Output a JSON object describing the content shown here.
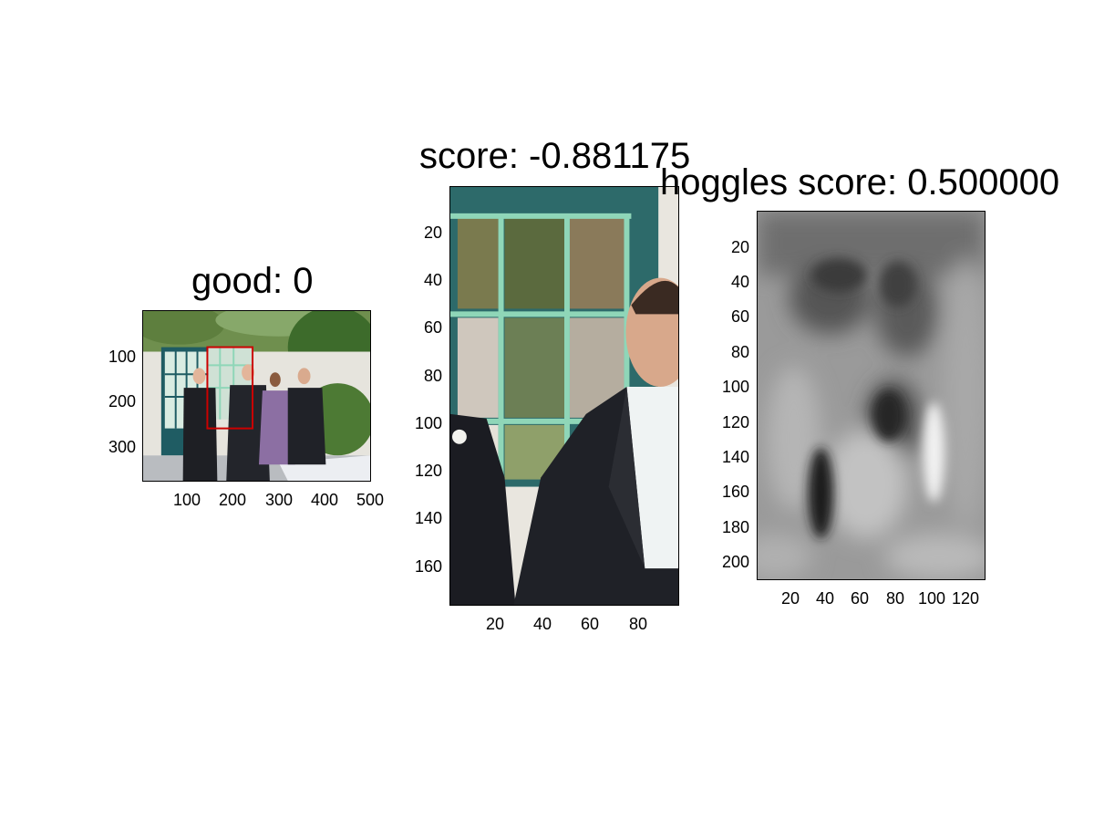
{
  "panels": [
    {
      "title": "good: 0",
      "x_ticks": [
        "100",
        "200",
        "300",
        "400",
        "500"
      ],
      "y_ticks": [
        "100",
        "200",
        "300"
      ]
    },
    {
      "title": "score: -0.881175",
      "x_ticks": [
        "20",
        "40",
        "60",
        "80"
      ],
      "y_ticks": [
        "20",
        "40",
        "60",
        "80",
        "100",
        "120",
        "140",
        "160"
      ]
    },
    {
      "title": "hoggles score: 0.500000",
      "x_ticks": [
        "20",
        "40",
        "60",
        "80",
        "100",
        "120"
      ],
      "y_ticks": [
        "20",
        "40",
        "60",
        "80",
        "100",
        "120",
        "140",
        "160",
        "180",
        "200"
      ]
    }
  ],
  "colors": {
    "bounding_box": "#cc0000",
    "window_frame": "#8fd6b8"
  }
}
